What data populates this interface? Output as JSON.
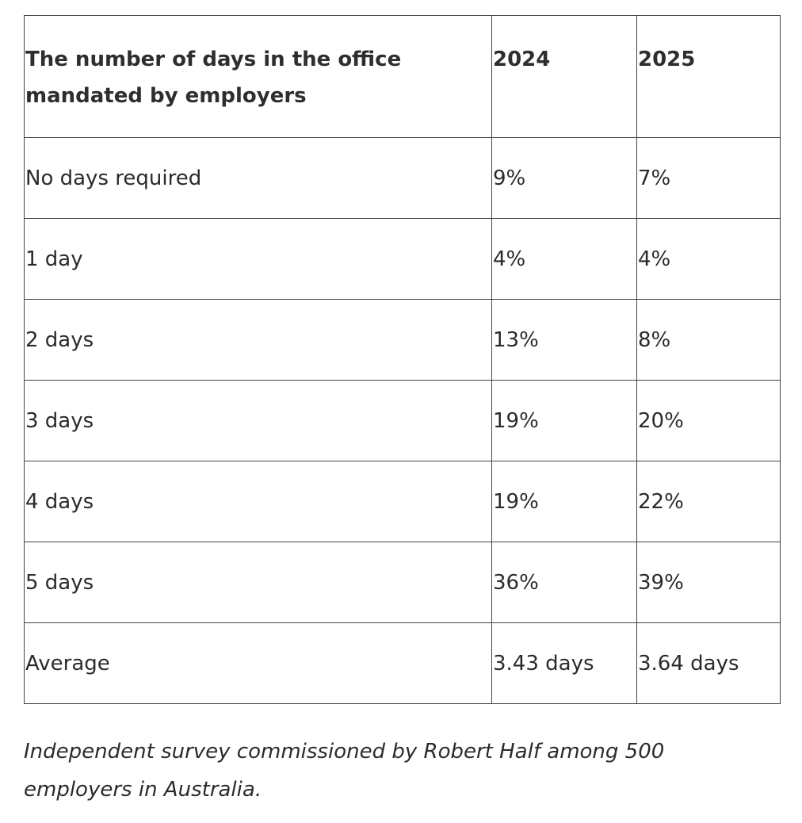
{
  "table": {
    "header": {
      "label": "The number of days in the office mandated by employers",
      "col_2024": "2024",
      "col_2025": "2025"
    },
    "rows": [
      {
        "label": "No days required",
        "v2024": "9%",
        "v2025": "7%"
      },
      {
        "label": "1 day",
        "v2024": "4%",
        "v2025": "4%"
      },
      {
        "label": "2 days",
        "v2024": "13%",
        "v2025": "8%"
      },
      {
        "label": "3 days",
        "v2024": "19%",
        "v2025": "20%"
      },
      {
        "label": "4 days",
        "v2024": "19%",
        "v2025": "22%"
      },
      {
        "label": "5 days",
        "v2024": "36%",
        "v2025": "39%"
      },
      {
        "label": "Average",
        "v2024": "3.43 days",
        "v2025": "3.64 days"
      }
    ]
  },
  "caption": "Independent survey commissioned by Robert Half among 500 employers in Australia."
}
